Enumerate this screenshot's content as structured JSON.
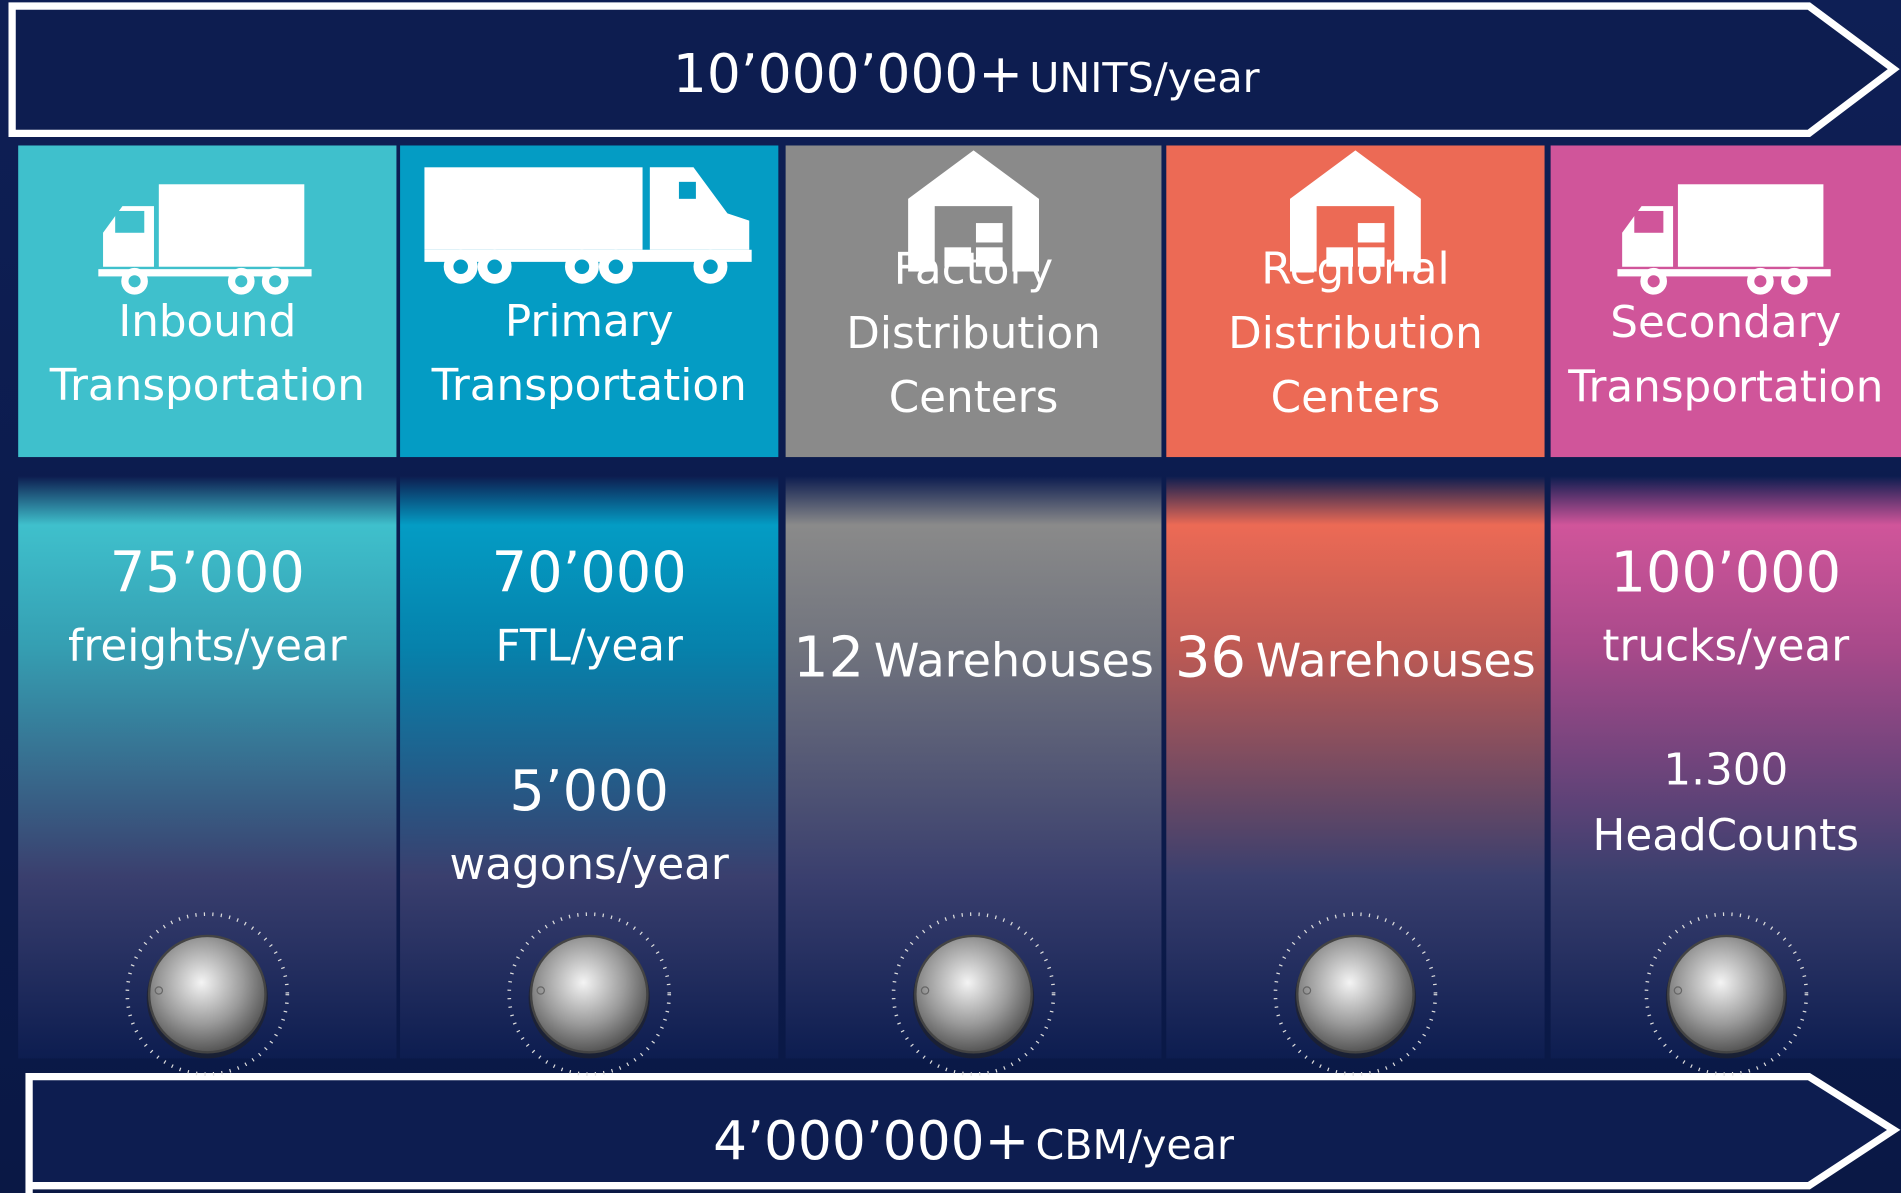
{
  "top_banner": {
    "value": "10’000’000+",
    "unit": "UNITS/year"
  },
  "columns": [
    {
      "title": [
        "Inbound",
        "Transportation"
      ],
      "stats": [
        {
          "value": "75’000",
          "unit": "freights/year"
        }
      ]
    },
    {
      "title": [
        "Primary",
        "Transportation"
      ],
      "stats": [
        {
          "value": "70’000",
          "unit": "FTL/year"
        },
        {
          "value": "5’000",
          "unit": "wagons/year"
        }
      ]
    },
    {
      "title": [
        "Factory",
        "Distribution",
        "Centers"
      ],
      "stats": [
        {
          "value": "12",
          "unit": "Warehouses"
        }
      ]
    },
    {
      "title": [
        "Regional",
        "Distribution",
        "Centers"
      ],
      "stats": [
        {
          "value": "36",
          "unit": "Warehouses"
        }
      ]
    },
    {
      "title": [
        "Secondary",
        "Transportation"
      ],
      "stats": [
        {
          "value": "100’000",
          "unit": "trucks/year"
        },
        {
          "value": "1.300",
          "unit": "HeadCounts"
        }
      ]
    }
  ],
  "bottom_banner": {
    "value": "4’000’000+",
    "unit": "CBM/year"
  }
}
